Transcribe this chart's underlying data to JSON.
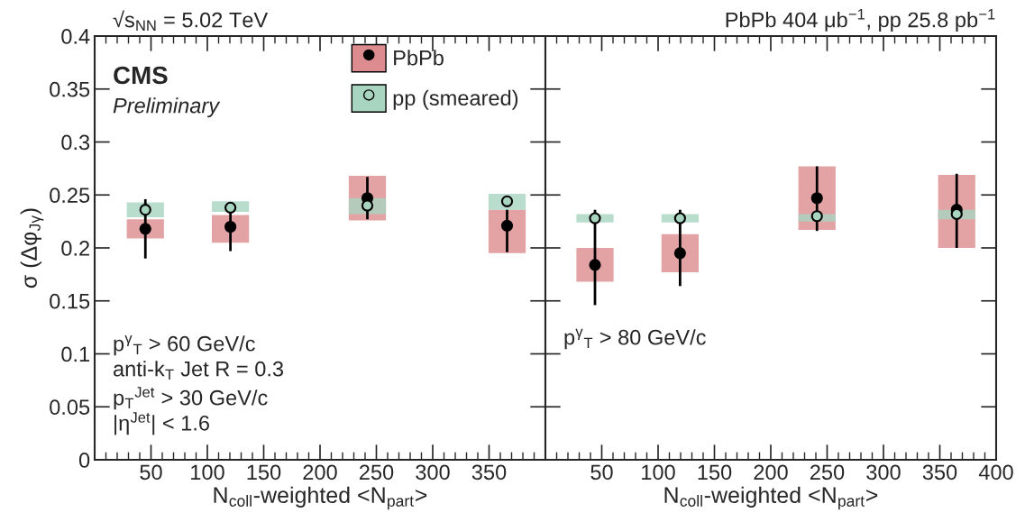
{
  "chart_data": [
    {
      "type": "scatter",
      "xlabel": "N$_{coll}$-weighted <N$_{part}$>",
      "ylabel": "σ (Δφ$_{Jγ}$)",
      "xlim": [
        0,
        400
      ],
      "xticks": [
        50,
        100,
        150,
        200,
        250,
        300,
        350
      ],
      "ylim": [
        0,
        0.4
      ],
      "yticks": [
        0,
        0.05,
        0.1,
        0.15,
        0.2,
        0.25,
        0.3,
        0.35,
        0.4
      ],
      "legend": "top right",
      "grid": false,
      "annotations": [
        "√s$_{NN}$ = 5.02 TeV",
        "CMS",
        "Preliminary",
        "p$^{γ}$$_{T}$ > 60 GeV/c",
        "anti-k$_{T}$ Jet R = 0.3",
        "p$_{T}$$^{Jet}$ > 30 GeV/c",
        "|η$^{Jet}$| < 1.6"
      ],
      "series": [
        {
          "type": "bar",
          "color": "#dc8c8e",
          "x": [
            45,
            120.5,
            242,
            366
          ],
          "base": [
            0.209,
            0.205,
            0.226,
            0.195
          ],
          "values": [
            0.018,
            0.026,
            0.042,
            0.041
          ]
        },
        {
          "name": "PbPb",
          "color": "#000000",
          "marker": "circle",
          "x": [
            45,
            120.5,
            242,
            366
          ],
          "values": [
            0.218,
            0.22,
            0.247,
            0.221
          ],
          "errors": [
            [
              0.19,
              0.246
            ],
            [
              0.197,
              0.238
            ],
            [
              0.227,
              0.267
            ],
            [
              0.196,
              0.236
            ]
          ]
        },
        {
          "type": "bar",
          "color": "#a8d5c0",
          "x": [
            45,
            120.5,
            242,
            366
          ],
          "base": [
            0.229,
            0.234,
            0.232,
            0.236
          ],
          "values": [
            0.014,
            0.01,
            0.015,
            0.015
          ]
        },
        {
          "name": "pp (smeared)",
          "color": "#a8d5c0",
          "marker": "circle",
          "x": [
            45,
            120.5,
            242,
            366
          ],
          "values": [
            0.236,
            0.238,
            0.24,
            0.244
          ]
        }
      ]
    },
    {
      "type": "scatter",
      "xlabel": "N$_{coll}$-weighted <N$_{part}$>",
      "xlim": [
        0,
        400
      ],
      "xticks": [
        50,
        100,
        150,
        200,
        250,
        300,
        350,
        400
      ],
      "ylim": [
        0,
        0.4
      ],
      "yticks": [
        0,
        0.05,
        0.1,
        0.15,
        0.2,
        0.25,
        0.3,
        0.35,
        0.4
      ],
      "tick_labels": "x",
      "grid": false,
      "annotations": [
        "PbPb 404 μb$^{−1}$, pp 25.8 pb$^{−1}$",
        "p$^{γ}$$_{T}$ > 80 GeV/c"
      ],
      "series": [
        {
          "type": "bar",
          "color": "#dc8c8e",
          "x": [
            44,
            119.5,
            241,
            365
          ],
          "base": [
            0.168,
            0.177,
            0.217,
            0.2
          ],
          "values": [
            0.032,
            0.036,
            0.06,
            0.069
          ]
        },
        {
          "color": "#000000",
          "marker": "circle",
          "x": [
            44,
            119.5,
            241,
            365
          ],
          "values": [
            0.184,
            0.195,
            0.247,
            0.236
          ],
          "errors": [
            [
              0.146,
              0.236
            ],
            [
              0.164,
              0.236
            ],
            [
              0.216,
              0.277
            ],
            [
              0.2,
              0.27
            ]
          ]
        },
        {
          "type": "bar",
          "color": "#a8d5c0",
          "x": [
            44,
            119.5,
            241,
            365
          ],
          "base": [
            0.224,
            0.224,
            0.225,
            0.227
          ],
          "values": [
            0.008,
            0.008,
            0.007,
            0.009
          ]
        },
        {
          "color": "#a8d5c0",
          "marker": "circle",
          "x": [
            44,
            119.5,
            241,
            365
          ],
          "values": [
            0.228,
            0.228,
            0.23,
            0.232
          ]
        }
      ]
    }
  ]
}
